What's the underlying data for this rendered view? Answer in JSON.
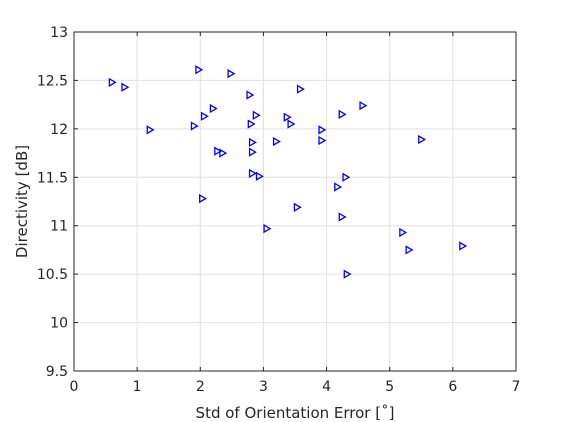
{
  "chart_data": {
    "type": "scatter",
    "title": "",
    "xlabel": "Std of Orientation Error [˚]",
    "ylabel": "Directivity [dB]",
    "xlim": [
      0,
      7
    ],
    "ylim": [
      9.5,
      13
    ],
    "xticks": [
      "0",
      "1",
      "2",
      "3",
      "4",
      "5",
      "6",
      "7"
    ],
    "yticks": [
      "9.5",
      "10",
      "10.5",
      "11",
      "11.5",
      "12",
      "12.5",
      "13"
    ],
    "grid": true,
    "marker": "triangle-right",
    "marker_color": "#0000ff",
    "points": [
      {
        "x": 0.6,
        "y": 12.48
      },
      {
        "x": 0.8,
        "y": 12.43
      },
      {
        "x": 1.2,
        "y": 11.99
      },
      {
        "x": 1.9,
        "y": 12.03
      },
      {
        "x": 1.97,
        "y": 12.61
      },
      {
        "x": 2.03,
        "y": 11.28
      },
      {
        "x": 2.06,
        "y": 12.13
      },
      {
        "x": 2.2,
        "y": 12.21
      },
      {
        "x": 2.27,
        "y": 11.77
      },
      {
        "x": 2.35,
        "y": 11.75
      },
      {
        "x": 2.48,
        "y": 12.57
      },
      {
        "x": 2.78,
        "y": 12.35
      },
      {
        "x": 2.8,
        "y": 12.05
      },
      {
        "x": 2.82,
        "y": 11.86
      },
      {
        "x": 2.82,
        "y": 11.76
      },
      {
        "x": 2.82,
        "y": 11.54
      },
      {
        "x": 2.88,
        "y": 12.14
      },
      {
        "x": 2.93,
        "y": 11.51
      },
      {
        "x": 3.05,
        "y": 10.97
      },
      {
        "x": 3.2,
        "y": 11.87
      },
      {
        "x": 3.37,
        "y": 12.12
      },
      {
        "x": 3.43,
        "y": 12.05
      },
      {
        "x": 3.53,
        "y": 11.19
      },
      {
        "x": 3.58,
        "y": 12.41
      },
      {
        "x": 3.92,
        "y": 11.99
      },
      {
        "x": 3.92,
        "y": 11.88
      },
      {
        "x": 4.17,
        "y": 11.4
      },
      {
        "x": 4.24,
        "y": 12.15
      },
      {
        "x": 4.24,
        "y": 11.09
      },
      {
        "x": 4.3,
        "y": 11.5
      },
      {
        "x": 4.32,
        "y": 10.5
      },
      {
        "x": 4.57,
        "y": 12.24
      },
      {
        "x": 5.2,
        "y": 10.93
      },
      {
        "x": 5.3,
        "y": 10.75
      },
      {
        "x": 5.5,
        "y": 11.89
      },
      {
        "x": 6.15,
        "y": 10.79
      }
    ]
  }
}
